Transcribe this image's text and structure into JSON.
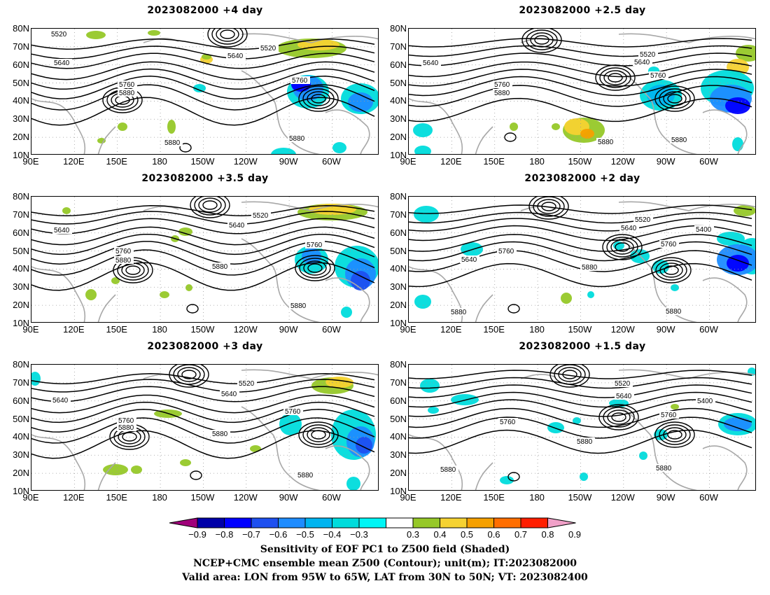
{
  "panels": [
    {
      "title": "2023082000  +4 day",
      "contour_labels": [
        "5520",
        "5520",
        "5640",
        "5640",
        "5760",
        "5760",
        "5880",
        "5880",
        "5880"
      ]
    },
    {
      "title": "2023082000  +2.5 day",
      "contour_labels": [
        "5520",
        "5640",
        "5640",
        "5760",
        "5760",
        "5880",
        "5880",
        "5880"
      ]
    },
    {
      "title": "2023082000  +3.5 day",
      "contour_labels": [
        "5520",
        "5640",
        "5640",
        "5760",
        "5760",
        "5880",
        "5880",
        "5880"
      ]
    },
    {
      "title": "2023082000  +2 day",
      "contour_labels": [
        "5520",
        "5400",
        "5640",
        "5640",
        "5760",
        "5760",
        "5880",
        "5880",
        "5880"
      ]
    },
    {
      "title": "2023082000  +3 day",
      "contour_labels": [
        "5520",
        "5640",
        "5640",
        "5760",
        "5760",
        "5880",
        "5880",
        "5880"
      ]
    },
    {
      "title": "2023082000  +1.5 day",
      "contour_labels": [
        "5520",
        "5400",
        "5640",
        "5760",
        "5760",
        "5880",
        "5880",
        "5880"
      ]
    }
  ],
  "axes": {
    "lat_labels": [
      "80N",
      "70N",
      "60N",
      "50N",
      "40N",
      "30N",
      "20N",
      "10N"
    ],
    "lon_labels": [
      "90E",
      "120E",
      "150E",
      "180",
      "150W",
      "120W",
      "90W",
      "60W"
    ]
  },
  "colorbar": {
    "labels": [
      "−0.9",
      "−0.8",
      "−0.7",
      "−0.6",
      "−0.5",
      "−0.4",
      "−0.3",
      "0.3",
      "0.4",
      "0.5",
      "0.6",
      "0.7",
      "0.8",
      "0.9"
    ],
    "colors": [
      "#a0007a",
      "#0000a8",
      "#0000ff",
      "#1e50f0",
      "#1e8cff",
      "#00b4f0",
      "#00dcdc",
      "#00f5f5",
      "#ffffff",
      "#96c828",
      "#f5d232",
      "#f5a000",
      "#ff6e00",
      "#ff1e00",
      "#f0a0c8"
    ]
  },
  "captions": [
    "Sensitivity of EOF PC1 to Z500 field (Shaded)",
    "NCEP+CMC ensemble mean Z500 (Contour); unit(m); IT:2023082000",
    "Valid area: LON from 95W to 65W, LAT from 30N to 50N; VT: 2023082400"
  ]
}
